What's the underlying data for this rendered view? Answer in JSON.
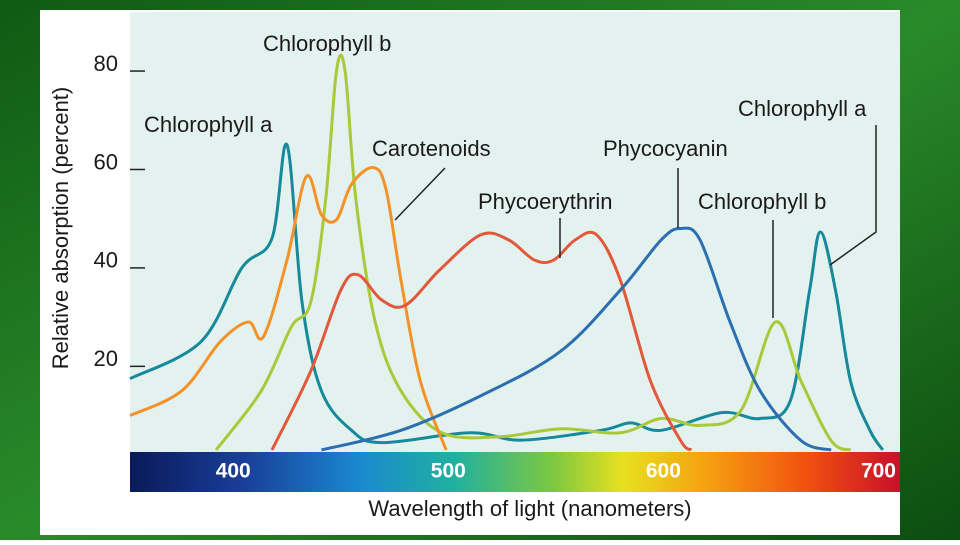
{
  "chart_data": {
    "type": "line",
    "xlabel": "Wavelength of light (nanometers)",
    "ylabel": "Relative absorption (percent)",
    "xlim": [
      352,
      710
    ],
    "ylim": [
      3,
      92
    ],
    "xticks": [
      400,
      500,
      600,
      700
    ],
    "yticks": [
      20,
      40,
      60,
      80
    ],
    "series": [
      {
        "name": "Chlorophyll a",
        "color": "#16899a",
        "x": [
          352,
          385,
          404,
          418,
          425,
          432,
          441,
          455,
          469,
          510,
          534,
          571,
          585,
          599,
          627,
          645,
          659,
          668,
          673,
          680,
          687,
          696,
          702
        ],
        "values": [
          17.5,
          25,
          40,
          46,
          65,
          33,
          15,
          7,
          4.5,
          6.5,
          5,
          7,
          8.5,
          7,
          10.6,
          9.4,
          13,
          35.5,
          47.3,
          35.5,
          17,
          7,
          3
        ]
      },
      {
        "name": "Chlorophyll b",
        "color": "#a9c83a",
        "x": [
          392,
          413,
          427,
          436,
          443,
          448,
          452,
          457,
          466,
          478,
          497,
          524,
          552,
          580,
          599,
          617,
          636,
          652,
          664,
          678,
          687
        ],
        "values": [
          3,
          15,
          28,
          33,
          54,
          80,
          80,
          54,
          29,
          15,
          6.5,
          5.7,
          7.3,
          6.5,
          9.4,
          8,
          11,
          29,
          17,
          4.9,
          3
        ]
      },
      {
        "name": "Carotenoids",
        "color": "#f39229",
        "x": [
          352,
          376,
          394,
          407,
          414,
          425,
          434,
          441,
          448,
          455,
          465,
          471,
          478,
          487,
          499
        ],
        "values": [
          10,
          15,
          25,
          29,
          26,
          41.6,
          58.6,
          50.8,
          49.8,
          57,
          60.4,
          56,
          37.5,
          17,
          3
        ]
      },
      {
        "name": "Phycoerythrin",
        "color": "#e2583b",
        "x": [
          418,
          436,
          450,
          458,
          469,
          480,
          496,
          515,
          528,
          540,
          549,
          559,
          569,
          580,
          594,
          608,
          613
        ],
        "values": [
          3,
          19,
          35.5,
          38.6,
          33.5,
          32.4,
          39.6,
          46.7,
          45.7,
          41.6,
          41.6,
          45.7,
          46.7,
          37.5,
          17,
          4.9,
          3
        ]
      },
      {
        "name": "Phycocyanin",
        "color": "#2c6fb0",
        "x": [
          441,
          478,
          515,
          552,
          580,
          599,
          608,
          617,
          631,
          645,
          664,
          678
        ],
        "values": [
          3,
          7,
          14,
          23,
          35.5,
          45.7,
          48,
          45.7,
          29,
          15,
          4.9,
          3
        ]
      }
    ],
    "annotations": [
      "Chlorophyll a",
      "Chlorophyll b"
    ]
  }
}
